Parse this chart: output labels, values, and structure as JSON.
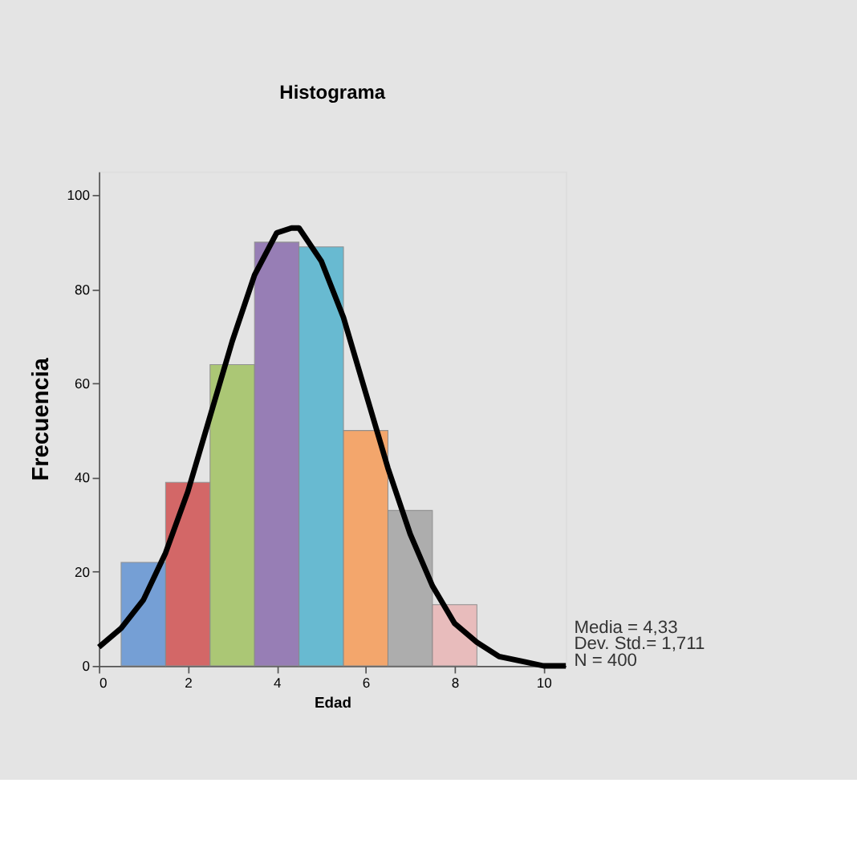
{
  "chart_data": {
    "type": "histogram",
    "title": "Histograma",
    "xlabel": "Edad",
    "ylabel": "Frecuencia",
    "bins": [
      0.5,
      1.5,
      2.5,
      3.5,
      4.5,
      5.5,
      6.5,
      7.5,
      8.5
    ],
    "values": [
      22,
      39,
      64,
      90,
      89,
      50,
      33,
      13
    ],
    "colors": [
      "#6a98d4",
      "#d25a5a",
      "#a5c46a",
      "#8f74b0",
      "#5bb6cf",
      "#f5a060",
      "#a8a8a8",
      "#e9b8b8"
    ],
    "series": [
      {
        "type": "line",
        "color": "#000000",
        "x": [
          0,
          0.5,
          1,
          1.5,
          2,
          2.5,
          3,
          3.5,
          4,
          4.33,
          4.5,
          5,
          5.5,
          6,
          6.5,
          7,
          7.5,
          8,
          8.5,
          9,
          9.5,
          10,
          10.5
        ],
        "values": [
          4,
          8,
          14,
          24,
          37,
          53,
          69,
          83,
          92,
          93,
          93,
          86,
          74,
          58,
          42,
          28,
          17,
          9,
          5,
          2,
          1,
          0,
          0
        ]
      }
    ],
    "xlim": [
      0,
      10.5
    ],
    "xticks": [
      0,
      2,
      4,
      6,
      8,
      10
    ],
    "ylim": [
      0,
      105
    ],
    "yticks": [
      0,
      20,
      40,
      60,
      80,
      100
    ],
    "grid": false,
    "annotations": [
      "Media = 4,33",
      "Dev. Std.= 1,711",
      "N = 400"
    ]
  }
}
